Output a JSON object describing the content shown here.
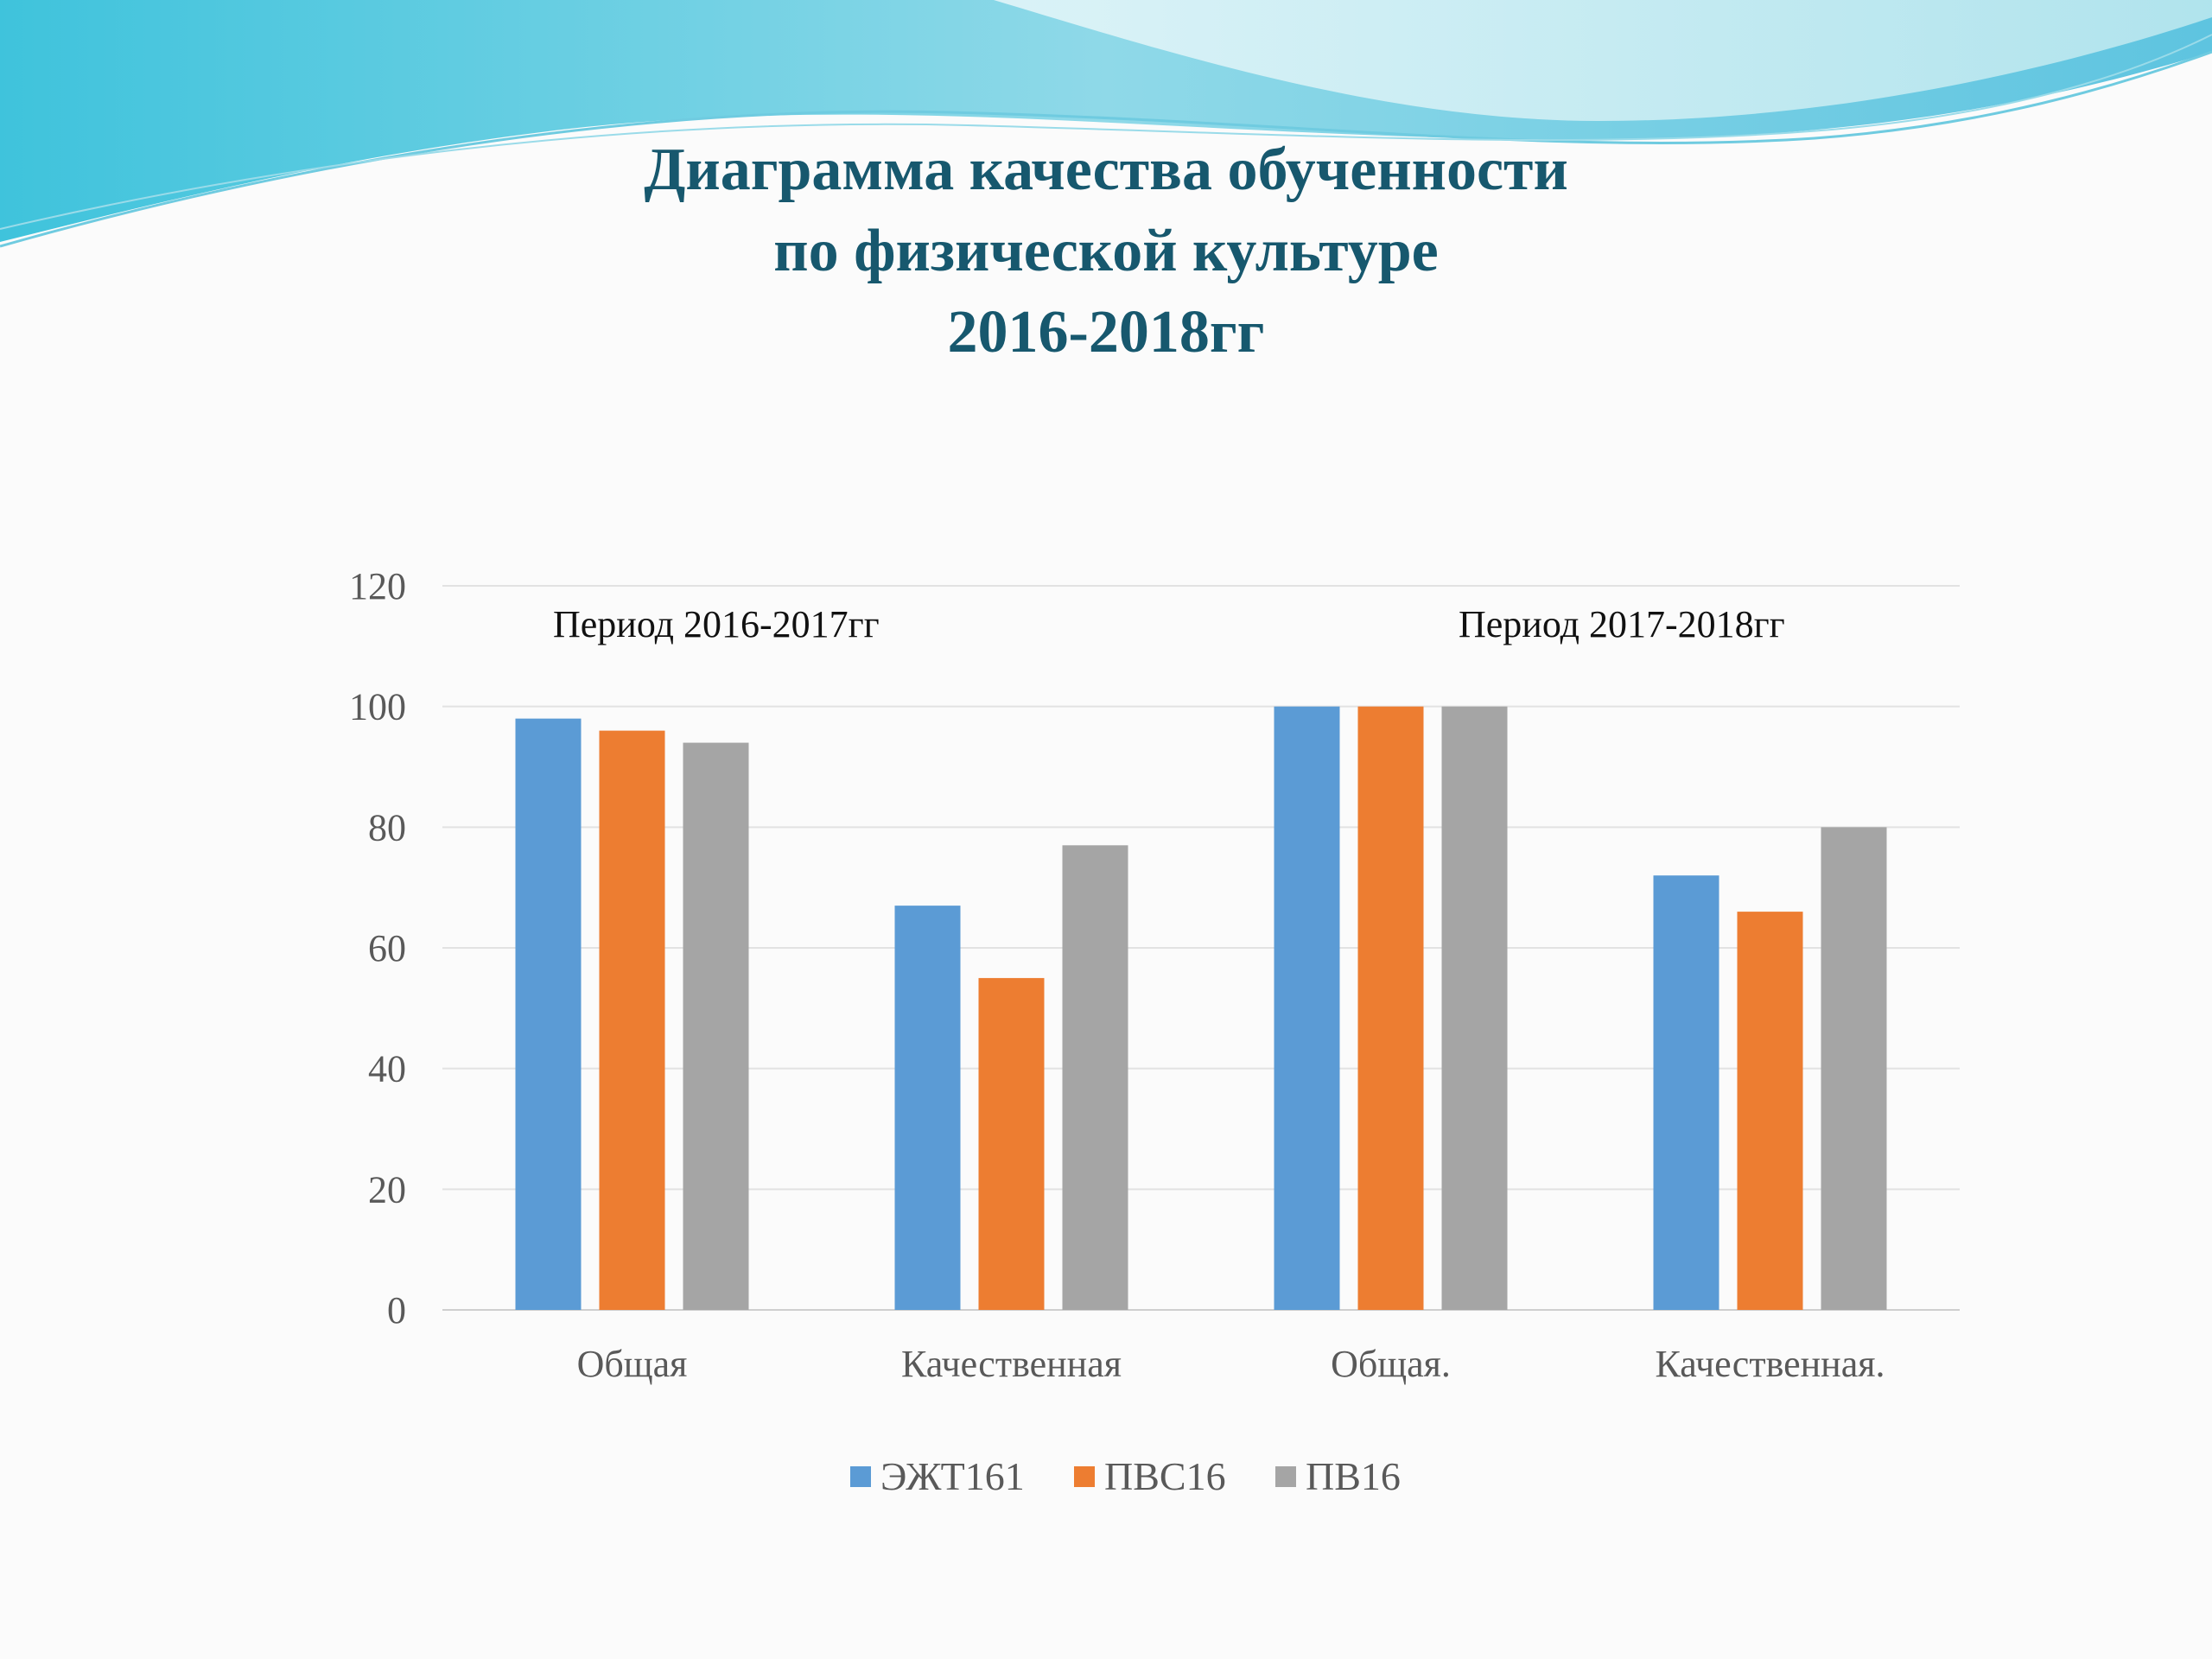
{
  "title_lines": [
    "Диаграмма качества обученности",
    "по физической культуре",
    "2016-2018гг"
  ],
  "colors": {
    "title": "#17586e",
    "wave_light": "#bfe9ef",
    "wave_mid": "#7dd3e3",
    "wave_dark": "#3fb8d6"
  },
  "chart_data": {
    "type": "bar",
    "categories": [
      "Общая",
      "Качественная",
      "Общая.",
      "Качественная."
    ],
    "series": [
      {
        "name": "ЭЖТ161",
        "color": "#5b9bd5",
        "values": [
          98,
          67,
          100,
          72
        ]
      },
      {
        "name": "ПВС16",
        "color": "#ed7d31",
        "values": [
          96,
          55,
          100,
          66
        ]
      },
      {
        "name": "ПВ16",
        "color": "#a5a5a5",
        "values": [
          94,
          77,
          100,
          80
        ]
      }
    ],
    "ylim": [
      0,
      120
    ],
    "yticks": [
      0,
      20,
      40,
      60,
      80,
      100,
      120
    ],
    "annotations": [
      "Период 2016-2017гг",
      "Период 2017-2018гг"
    ],
    "grid": true,
    "legend": "bottom"
  }
}
